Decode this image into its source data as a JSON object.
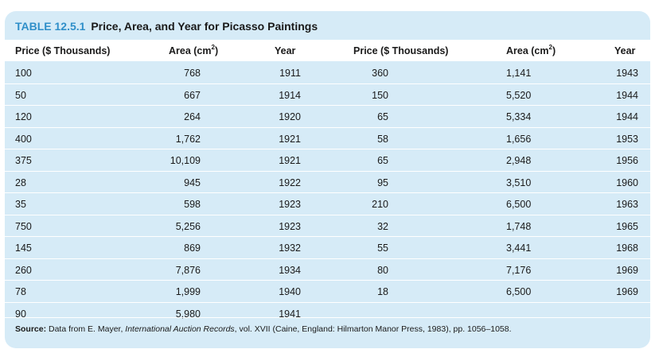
{
  "table": {
    "number": "TABLE 12.5.1",
    "title": "Price, Area, and Year for Picasso Paintings",
    "headers": {
      "price_left": "Price ($ Thousands)",
      "area_left": "Area (cm",
      "area_left_sup": "2",
      "area_left_close": ")",
      "year_left": "Year",
      "price_right": "Price ($ Thousands)",
      "area_right": "Area (cm",
      "area_right_sup": "2",
      "area_right_close": ")",
      "year_right": "Year"
    },
    "rows": [
      {
        "p1": "100",
        "a1": "768",
        "y1": "1911",
        "p2": "360",
        "a2": "1,141",
        "y2": "1943"
      },
      {
        "p1": "50",
        "a1": "667",
        "y1": "1914",
        "p2": "150",
        "a2": "5,520",
        "y2": "1944"
      },
      {
        "p1": "120",
        "a1": "264",
        "y1": "1920",
        "p2": "65",
        "a2": "5,334",
        "y2": "1944"
      },
      {
        "p1": "400",
        "a1": "1,762",
        "y1": "1921",
        "p2": "58",
        "a2": "1,656",
        "y2": "1953"
      },
      {
        "p1": "375",
        "a1": "10,109",
        "y1": "1921",
        "p2": "65",
        "a2": "2,948",
        "y2": "1956"
      },
      {
        "p1": "28",
        "a1": "945",
        "y1": "1922",
        "p2": "95",
        "a2": "3,510",
        "y2": "1960"
      },
      {
        "p1": "35",
        "a1": "598",
        "y1": "1923",
        "p2": "210",
        "a2": "6,500",
        "y2": "1963"
      },
      {
        "p1": "750",
        "a1": "5,256",
        "y1": "1923",
        "p2": "32",
        "a2": "1,748",
        "y2": "1965"
      },
      {
        "p1": "145",
        "a1": "869",
        "y1": "1932",
        "p2": "55",
        "a2": "3,441",
        "y2": "1968"
      },
      {
        "p1": "260",
        "a1": "7,876",
        "y1": "1934",
        "p2": "80",
        "a2": "7,176",
        "y2": "1969"
      },
      {
        "p1": "78",
        "a1": "1,999",
        "y1": "1940",
        "p2": "18",
        "a2": "6,500",
        "y2": "1969"
      },
      {
        "p1": "90",
        "a1": "5,980",
        "y1": "1941",
        "p2": "",
        "a2": "",
        "y2": ""
      }
    ],
    "source": {
      "label": "Source:",
      "text_before": " Data from E. Mayer, ",
      "italic": "International Auction Records",
      "text_after": ", vol. XVII (Caine, England: Hilmarton Manor Press, 1983), pp. 1056–1058."
    }
  },
  "colors": {
    "background": "#d6ebf7",
    "header_background": "#ffffff",
    "table_number": "#2f8fc9",
    "text": "#1a1a1a"
  }
}
